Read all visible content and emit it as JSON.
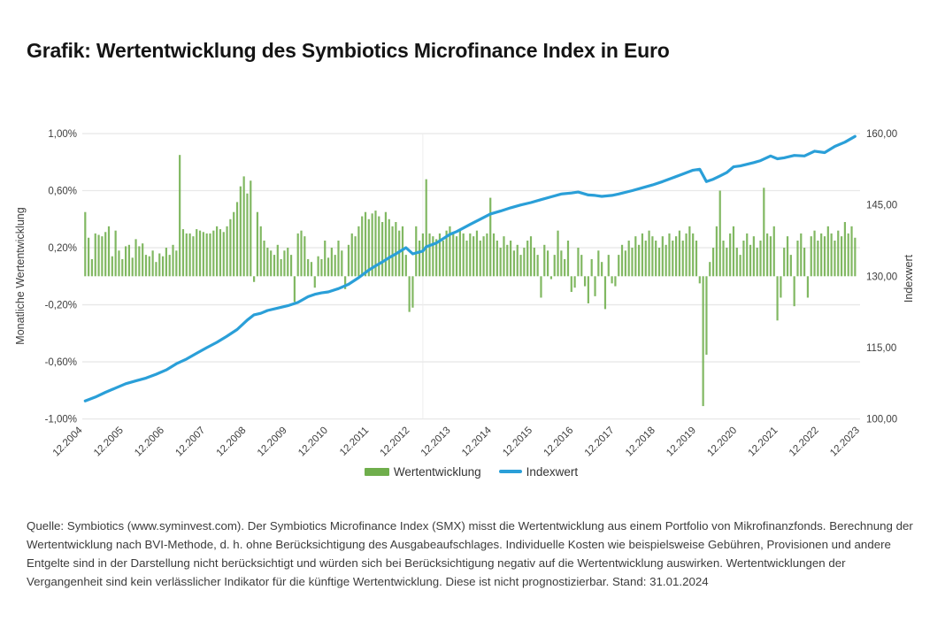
{
  "title": "Grafik: Wertentwicklung des Symbiotics Microfinance Index in Euro",
  "legend": {
    "bar_label": "Wertentwicklung",
    "line_label": "Indexwert"
  },
  "footnote": "Quelle: Symbiotics (www.syminvest.com). Der Symbiotics Microfinance Index (SMX) misst die Wertentwicklung aus einem Portfolio von Mikrofinanzfonds. Berechnung der Wertentwicklung nach BVI-Methode, d. h. ohne Berücksichtigung des Ausgabeaufschlages. Individuelle Kosten wie beispielsweise Gebühren, Provisionen und andere Entgelte sind in der Darstellung nicht berücksichtigt und würden sich bei Berücksichtigung negativ auf die Wertentwicklung auswirken. Wertentwicklungen der Vergangenheit sind kein verlässlicher Indikator für die künftige Wertentwicklung. Diese ist nicht prognostizierbar. Stand: 31.01.2024",
  "colors": {
    "bar_green": "#6fae4c",
    "line_blue": "#2a9fd8",
    "grid": "#e8e8e8",
    "axis_text": "#3d3d3d",
    "title_text": "#141414"
  },
  "chart_data": {
    "type": "bar",
    "title": "Wertentwicklung des Symbiotics Microfinance Index in Euro",
    "start_month": "12.2004",
    "end_month": "12.2023",
    "x_tick_labels": [
      "12.2004",
      "12.2005",
      "12.2006",
      "12.2007",
      "12.2008",
      "12.2009",
      "12.2010",
      "12.2011",
      "12.2012",
      "12.2013",
      "12.2014",
      "12.2015",
      "12.2016",
      "12.2017",
      "12.2018",
      "12.2019",
      "12.2020",
      "12.2021",
      "12.2022",
      "12.2023"
    ],
    "left_axis": {
      "label": "Monatliche Wertentwicklung",
      "tick_labels": [
        "1,00%",
        "0,60%",
        "0,20%",
        "-0,20%",
        "-0,60%",
        "-1,00%"
      ],
      "tick_values": [
        1.0,
        0.6,
        0.2,
        -0.2,
        -0.6,
        -1.0
      ],
      "range": [
        -1.0,
        1.0
      ],
      "unit": "%"
    },
    "right_axis": {
      "label": "Indexwert",
      "tick_labels": [
        "160,00",
        "145,00",
        "130,00",
        "115,00",
        "100,00"
      ],
      "tick_values": [
        160,
        145,
        130,
        115,
        100
      ],
      "range": [
        100,
        160
      ]
    },
    "grid": "horizontal",
    "legend_position": "bottom-center",
    "vline_month_index": 100,
    "series": [
      {
        "name": "Wertentwicklung",
        "type": "bar",
        "axis": "left",
        "unit": "%",
        "monthly_values": [
          0.45,
          0.27,
          0.12,
          0.3,
          0.29,
          0.28,
          0.31,
          0.35,
          0.14,
          0.32,
          0.18,
          0.12,
          0.21,
          0.22,
          0.13,
          0.26,
          0.21,
          0.23,
          0.15,
          0.14,
          0.18,
          0.1,
          0.16,
          0.14,
          0.2,
          0.15,
          0.22,
          0.18,
          0.85,
          0.33,
          0.3,
          0.3,
          0.28,
          0.33,
          0.32,
          0.31,
          0.3,
          0.3,
          0.32,
          0.35,
          0.33,
          0.31,
          0.35,
          0.4,
          0.45,
          0.52,
          0.63,
          0.7,
          0.58,
          0.67,
          -0.04,
          0.45,
          0.35,
          0.25,
          0.2,
          0.18,
          0.15,
          0.22,
          0.12,
          0.18,
          0.2,
          0.15,
          -0.18,
          0.3,
          0.32,
          0.28,
          0.12,
          0.1,
          -0.08,
          0.14,
          0.12,
          0.25,
          0.13,
          0.2,
          0.15,
          0.25,
          0.18,
          -0.09,
          0.22,
          0.3,
          0.28,
          0.35,
          0.42,
          0.45,
          0.4,
          0.44,
          0.46,
          0.42,
          0.38,
          0.45,
          0.4,
          0.35,
          0.38,
          0.32,
          0.35,
          0.15,
          -0.25,
          -0.22,
          0.35,
          0.25,
          0.3,
          0.68,
          0.3,
          0.28,
          0.26,
          0.3,
          0.25,
          0.32,
          0.35,
          0.3,
          0.28,
          0.32,
          0.3,
          0.25,
          0.3,
          0.28,
          0.32,
          0.25,
          0.28,
          0.3,
          0.55,
          0.3,
          0.25,
          0.2,
          0.28,
          0.22,
          0.25,
          0.18,
          0.22,
          0.15,
          0.2,
          0.25,
          0.28,
          0.2,
          0.15,
          -0.15,
          0.22,
          0.18,
          -0.02,
          0.15,
          0.32,
          0.18,
          0.12,
          0.25,
          -0.11,
          -0.08,
          0.2,
          0.15,
          -0.07,
          -0.19,
          0.12,
          -0.14,
          0.18,
          0.1,
          -0.23,
          0.15,
          -0.05,
          -0.07,
          0.15,
          0.22,
          0.18,
          0.25,
          0.2,
          0.28,
          0.22,
          0.3,
          0.25,
          0.32,
          0.28,
          0.25,
          0.2,
          0.28,
          0.22,
          0.3,
          0.25,
          0.28,
          0.32,
          0.25,
          0.3,
          0.35,
          0.3,
          0.25,
          -0.05,
          -0.91,
          -0.55,
          0.1,
          0.2,
          0.35,
          0.6,
          0.25,
          0.2,
          0.3,
          0.35,
          0.2,
          0.15,
          0.25,
          0.3,
          0.22,
          0.28,
          0.2,
          0.25,
          0.62,
          0.3,
          0.28,
          0.35,
          -0.31,
          -0.15,
          0.2,
          0.28,
          0.15,
          -0.21,
          0.25,
          0.3,
          0.2,
          -0.15,
          0.28,
          0.32,
          0.25,
          0.3,
          0.28,
          0.35,
          0.3,
          0.25,
          0.32,
          0.28,
          0.38,
          0.3,
          0.35,
          0.27
        ]
      },
      {
        "name": "Indexwert",
        "type": "line",
        "axis": "right",
        "anchor_points": [
          [
            0,
            103.8
          ],
          [
            3,
            104.6
          ],
          [
            6,
            105.6
          ],
          [
            9,
            106.5
          ],
          [
            12,
            107.4
          ],
          [
            15,
            108.0
          ],
          [
            18,
            108.6
          ],
          [
            21,
            109.4
          ],
          [
            24,
            110.3
          ],
          [
            27,
            111.6
          ],
          [
            30,
            112.6
          ],
          [
            33,
            113.8
          ],
          [
            36,
            115.0
          ],
          [
            39,
            116.1
          ],
          [
            42,
            117.4
          ],
          [
            45,
            118.8
          ],
          [
            48,
            120.8
          ],
          [
            50,
            121.9
          ],
          [
            52,
            122.2
          ],
          [
            54,
            122.8
          ],
          [
            57,
            123.3
          ],
          [
            60,
            123.8
          ],
          [
            63,
            124.5
          ],
          [
            66,
            125.7
          ],
          [
            68,
            126.2
          ],
          [
            70,
            126.5
          ],
          [
            72,
            126.7
          ],
          [
            75,
            127.4
          ],
          [
            78,
            128.3
          ],
          [
            81,
            129.7
          ],
          [
            84,
            131.3
          ],
          [
            86,
            132.2
          ],
          [
            88,
            133.0
          ],
          [
            90,
            133.9
          ],
          [
            92,
            134.7
          ],
          [
            95,
            136.0
          ],
          [
            97,
            134.7
          ],
          [
            100,
            135.3
          ],
          [
            101,
            136.2
          ],
          [
            104,
            137.0
          ],
          [
            108,
            138.8
          ],
          [
            110,
            139.4
          ],
          [
            114,
            140.9
          ],
          [
            117,
            142.0
          ],
          [
            120,
            143.1
          ],
          [
            123,
            143.7
          ],
          [
            126,
            144.4
          ],
          [
            129,
            145.0
          ],
          [
            132,
            145.5
          ],
          [
            135,
            146.1
          ],
          [
            138,
            146.7
          ],
          [
            141,
            147.3
          ],
          [
            144,
            147.5
          ],
          [
            146,
            147.7
          ],
          [
            149,
            147.1
          ],
          [
            151,
            147.0
          ],
          [
            153,
            146.8
          ],
          [
            156,
            147.0
          ],
          [
            158,
            147.3
          ],
          [
            162,
            148.0
          ],
          [
            165,
            148.6
          ],
          [
            168,
            149.2
          ],
          [
            171,
            149.9
          ],
          [
            174,
            150.7
          ],
          [
            177,
            151.5
          ],
          [
            180,
            152.3
          ],
          [
            182,
            152.5
          ],
          [
            184,
            149.9
          ],
          [
            186,
            150.4
          ],
          [
            188,
            151.1
          ],
          [
            190,
            151.8
          ],
          [
            192,
            153.0
          ],
          [
            194,
            153.2
          ],
          [
            198,
            153.9
          ],
          [
            200,
            154.3
          ],
          [
            203,
            155.3
          ],
          [
            205,
            154.7
          ],
          [
            207,
            154.9
          ],
          [
            210,
            155.4
          ],
          [
            213,
            155.3
          ],
          [
            216,
            156.3
          ],
          [
            219,
            156.0
          ],
          [
            222,
            157.3
          ],
          [
            225,
            158.2
          ],
          [
            228,
            159.4
          ]
        ]
      }
    ]
  }
}
